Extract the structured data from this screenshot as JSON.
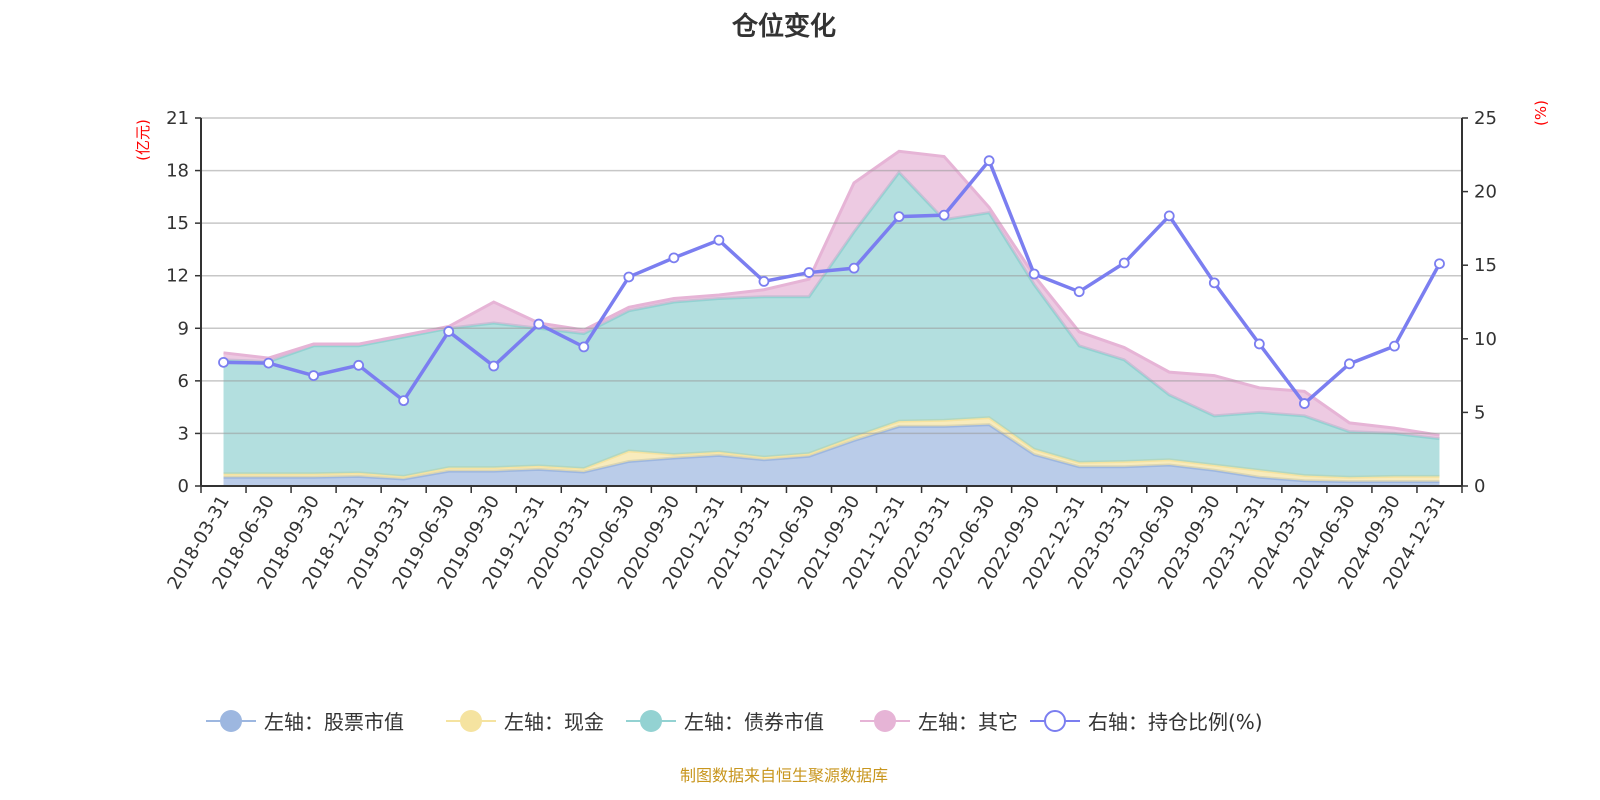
{
  "title": "仓位变化",
  "footer": "制图数据来自恒生聚源数据库",
  "chart_data": {
    "type": "area",
    "title": "仓位变化",
    "categories": [
      "2018-03-31",
      "2018-06-30",
      "2018-09-30",
      "2018-12-31",
      "2019-03-31",
      "2019-06-30",
      "2019-09-30",
      "2019-12-31",
      "2020-03-31",
      "2020-06-30",
      "2020-09-30",
      "2020-12-31",
      "2021-03-31",
      "2021-06-30",
      "2021-09-30",
      "2021-12-31",
      "2022-03-31",
      "2022-06-30",
      "2022-09-30",
      "2022-12-31",
      "2023-03-31",
      "2023-06-30",
      "2023-09-30",
      "2023-12-31",
      "2024-03-31",
      "2024-06-30",
      "2024-09-30",
      "2024-12-31"
    ],
    "left_axis": {
      "label": "(亿元)",
      "range": [
        0,
        21
      ],
      "ticks": [
        0,
        3,
        6,
        9,
        12,
        15,
        18,
        21
      ],
      "label_color": "#ff0000"
    },
    "right_axis": {
      "label": "(%)",
      "range": [
        0,
        25
      ],
      "ticks": [
        0,
        5,
        10,
        15,
        20,
        25
      ],
      "label_color": "#ff0000"
    },
    "grid": true,
    "legend_position": "bottom",
    "stacked": true,
    "series": [
      {
        "name": "左轴：股票市值",
        "axis": "left",
        "kind": "area",
        "color": "#9db7e0",
        "values": [
          0.5,
          0.5,
          0.5,
          0.55,
          0.4,
          0.85,
          0.85,
          0.95,
          0.8,
          1.4,
          1.6,
          1.75,
          1.5,
          1.7,
          2.6,
          3.4,
          3.4,
          3.5,
          1.8,
          1.1,
          1.1,
          1.2,
          0.9,
          0.5,
          0.3,
          0.25,
          0.25,
          0.25
        ]
      },
      {
        "name": "左轴：现金",
        "axis": "left",
        "kind": "area",
        "color": "#f5e3a0",
        "values": [
          0.2,
          0.2,
          0.2,
          0.2,
          0.15,
          0.2,
          0.2,
          0.2,
          0.2,
          0.6,
          0.2,
          0.2,
          0.15,
          0.15,
          0.2,
          0.3,
          0.35,
          0.4,
          0.3,
          0.25,
          0.3,
          0.3,
          0.3,
          0.4,
          0.3,
          0.25,
          0.3,
          0.3
        ]
      },
      {
        "name": "左轴：债券市值",
        "axis": "left",
        "kind": "area",
        "color": "#93d2d2",
        "values": [
          6.5,
          6.4,
          7.3,
          7.25,
          7.95,
          7.95,
          8.25,
          7.85,
          7.7,
          8.0,
          8.7,
          8.75,
          9.15,
          8.95,
          11.7,
          14.2,
          11.45,
          11.7,
          9.4,
          6.65,
          5.8,
          3.7,
          2.8,
          3.3,
          3.4,
          2.6,
          2.45,
          2.15
        ]
      },
      {
        "name": "左轴：其它",
        "axis": "left",
        "kind": "area",
        "color": "#e6b4d6",
        "values": [
          0.4,
          0.2,
          0.1,
          0.1,
          0.1,
          0.1,
          1.2,
          0.3,
          0.2,
          0.2,
          0.2,
          0.2,
          0.4,
          1.0,
          2.8,
          1.2,
          3.6,
          0.3,
          0.5,
          0.8,
          0.7,
          1.3,
          2.3,
          1.4,
          1.4,
          0.5,
          0.3,
          0.2
        ]
      },
      {
        "name": "右轴：持仓比例(%)",
        "axis": "right",
        "kind": "line",
        "color": "#7b7ef0",
        "values": [
          8.4,
          8.35,
          7.5,
          8.2,
          5.8,
          10.5,
          8.15,
          11.0,
          9.45,
          14.2,
          15.5,
          16.7,
          13.9,
          14.5,
          14.8,
          18.3,
          18.4,
          22.1,
          14.4,
          13.2,
          15.15,
          18.35,
          13.8,
          9.65,
          5.6,
          8.3,
          9.5,
          15.1
        ]
      }
    ]
  }
}
